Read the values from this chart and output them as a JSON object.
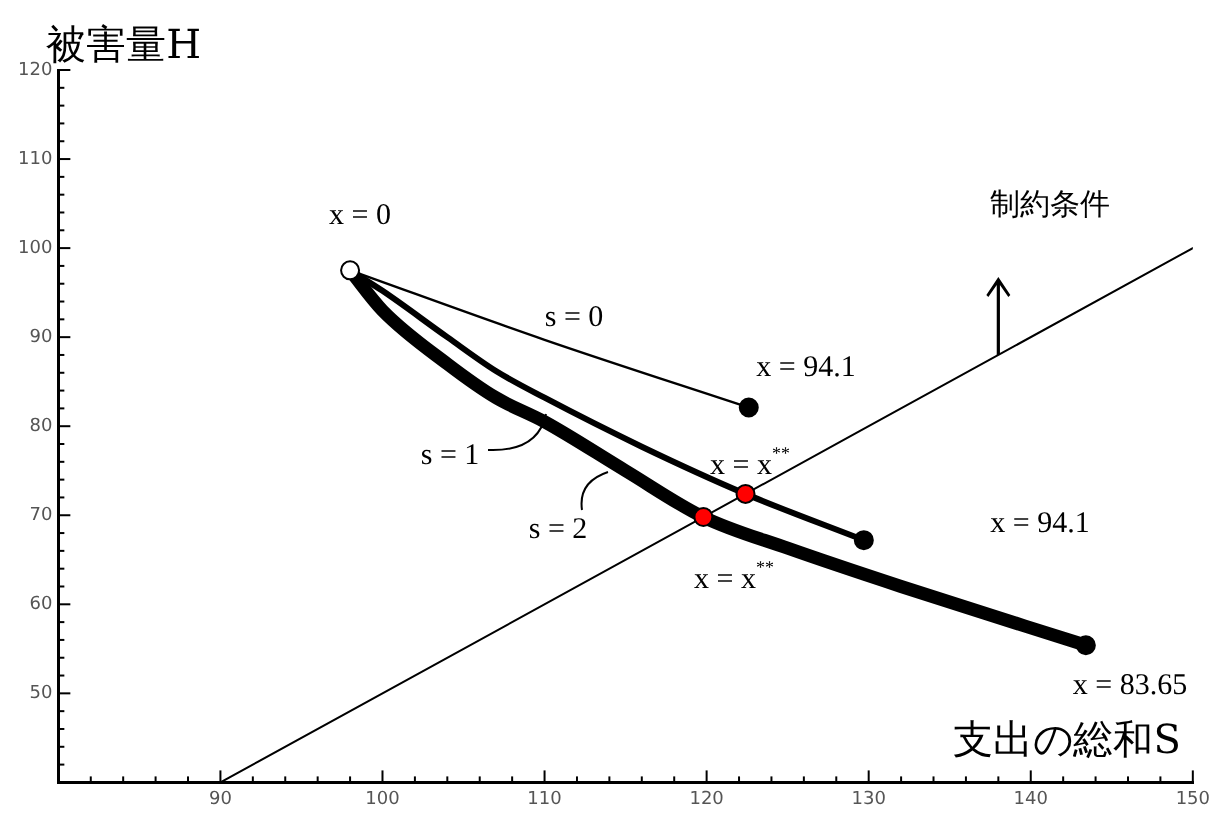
{
  "chart_data": {
    "type": "line",
    "ylabel": "被害量H",
    "xlabel": "支出の総和S",
    "xlim": [
      80,
      150
    ],
    "ylim": [
      40,
      120
    ],
    "xticks": [
      {
        "value": 82,
        "label": null
      },
      {
        "value": 84,
        "label": null
      },
      {
        "value": 86,
        "label": null
      },
      {
        "value": 88,
        "label": null
      },
      90,
      {
        "value": 92,
        "label": null
      },
      {
        "value": 94,
        "label": null
      },
      {
        "value": 96,
        "label": null
      },
      {
        "value": 98,
        "label": null
      },
      100,
      {
        "value": 102,
        "label": null
      },
      {
        "value": 104,
        "label": null
      },
      {
        "value": 106,
        "label": null
      },
      {
        "value": 108,
        "label": null
      },
      110,
      {
        "value": 112,
        "label": null
      },
      {
        "value": 114,
        "label": null
      },
      {
        "value": 116,
        "label": null
      },
      {
        "value": 118,
        "label": null
      },
      120,
      {
        "value": 122,
        "label": null
      },
      {
        "value": 124,
        "label": null
      },
      {
        "value": 126,
        "label": null
      },
      {
        "value": 128,
        "label": null
      },
      130,
      {
        "value": 132,
        "label": null
      },
      {
        "value": 134,
        "label": null
      },
      {
        "value": 136,
        "label": null
      },
      {
        "value": 138,
        "label": null
      },
      140,
      {
        "value": 142,
        "label": null
      },
      {
        "value": 144,
        "label": null
      },
      {
        "value": 146,
        "label": null
      },
      {
        "value": 148,
        "label": null
      },
      150
    ],
    "yticks": [
      {
        "value": 42,
        "label": null
      },
      {
        "value": 44,
        "label": null
      },
      {
        "value": 46,
        "label": null
      },
      {
        "value": 48,
        "label": null
      },
      50,
      {
        "value": 52,
        "label": null
      },
      {
        "value": 54,
        "label": null
      },
      {
        "value": 56,
        "label": null
      },
      {
        "value": 58,
        "label": null
      },
      60,
      {
        "value": 62,
        "label": null
      },
      {
        "value": 64,
        "label": null
      },
      {
        "value": 66,
        "label": null
      },
      {
        "value": 68,
        "label": null
      },
      70,
      {
        "value": 72,
        "label": null
      },
      {
        "value": 74,
        "label": null
      },
      {
        "value": 76,
        "label": null
      },
      {
        "value": 78,
        "label": null
      },
      80,
      {
        "value": 82,
        "label": null
      },
      {
        "value": 84,
        "label": null
      },
      {
        "value": 86,
        "label": null
      },
      {
        "value": 88,
        "label": null
      },
      90,
      {
        "value": 92,
        "label": null
      },
      {
        "value": 94,
        "label": null
      },
      {
        "value": 96,
        "label": null
      },
      {
        "value": 98,
        "label": null
      },
      100,
      {
        "value": 102,
        "label": null
      },
      {
        "value": 104,
        "label": null
      },
      {
        "value": 106,
        "label": null
      },
      {
        "value": 108,
        "label": null
      },
      110,
      {
        "value": 112,
        "label": null
      },
      {
        "value": 114,
        "label": null
      },
      {
        "value": 116,
        "label": null
      },
      {
        "value": 118,
        "label": null
      },
      120
    ],
    "grid": false,
    "legend": false,
    "series": [
      {
        "type": "line",
        "color": "#000000",
        "marker": "none",
        "x": [
          98,
          110,
          122.6
        ],
        "values": [
          97.5,
          89.7,
          82.1
        ]
      },
      {
        "type": "line",
        "color": "#000000",
        "marker": "none",
        "x": [
          98,
          100,
          104,
          107,
          110,
          116,
          122.4,
          129.7
        ],
        "values": [
          97.5,
          95.2,
          90,
          86.2,
          83.2,
          77.7,
          72.4,
          67.2
        ]
      },
      {
        "type": "line",
        "color": "#000000",
        "marker": "none",
        "x": [
          98,
          100,
          104,
          107,
          110,
          115,
          119.8,
          125,
          132,
          143.4
        ],
        "values": [
          97.5,
          93,
          87,
          83.2,
          80.5,
          75,
          69.8,
          66.3,
          62,
          55.4
        ]
      },
      {
        "type": "line",
        "color": "#000000",
        "marker": "none",
        "x": [
          90,
          150
        ],
        "values": [
          40,
          100
        ]
      },
      {
        "type": "scatter",
        "color": "#ffffff",
        "marker": "circle",
        "x": [
          98
        ],
        "values": [
          97.5
        ]
      },
      {
        "type": "scatter",
        "color": "#000000",
        "marker": "circle",
        "x": [
          122.6,
          129.7,
          143.4
        ],
        "values": [
          82.1,
          67.2,
          55.4
        ]
      },
      {
        "type": "scatter",
        "color": "#ff0000",
        "marker": "circle",
        "x": [
          122.4,
          119.8
        ],
        "values": [
          72.4,
          69.8
        ]
      }
    ],
    "annotations": [
      "s = 0",
      "s = 1",
      "s = 2",
      "x = 0",
      "x = 94.1",
      "x = 94.1",
      "x = x$^{**}$",
      "x = x$^{**}$",
      "x = 83.65",
      "制約条件"
    ]
  }
}
